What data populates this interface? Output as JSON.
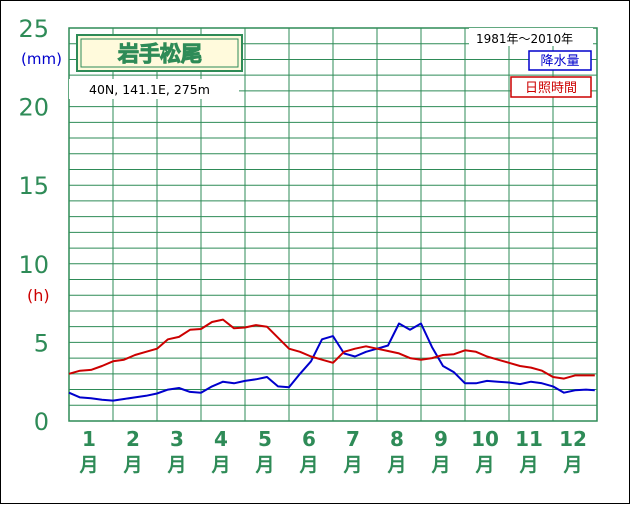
{
  "chart_data": {
    "type": "line",
    "title": "岩手松尾",
    "location": "40N, 141.1E, 275m",
    "period": "1981年〜2010年",
    "y_unit_precip": "(mm)",
    "y_unit_sun": "(h)",
    "ylim": [
      0,
      25
    ],
    "yticks": [
      "0",
      "5",
      "10",
      "15",
      "20",
      "25"
    ],
    "xlim": [
      1,
      13
    ],
    "x_tick_numbers": [
      "1",
      "2",
      "3",
      "4",
      "5",
      "6",
      "7",
      "8",
      "9",
      "10",
      "11",
      "12"
    ],
    "x_tick_unit": "月",
    "grid": true,
    "legend_position": "top-right",
    "colors": {
      "frame": "#2e8b57",
      "axis_text": "#2e8b57",
      "precip": "#0000cc",
      "sun": "#cc0000",
      "title_bg": "#fffadc",
      "title_text": "#2e8b57"
    },
    "series": [
      {
        "name": "降水量",
        "color": "#0000cc",
        "x": [
          1.0,
          1.25,
          1.5,
          1.75,
          2.0,
          2.25,
          2.5,
          2.75,
          3.0,
          3.25,
          3.5,
          3.75,
          4.0,
          4.25,
          4.5,
          4.75,
          5.0,
          5.25,
          5.5,
          5.75,
          6.0,
          6.25,
          6.5,
          6.75,
          7.0,
          7.25,
          7.5,
          7.75,
          8.0,
          8.25,
          8.5,
          8.75,
          9.0,
          9.25,
          9.5,
          9.75,
          10.0,
          10.25,
          10.5,
          10.75,
          11.0,
          11.25,
          11.5,
          11.75,
          12.0,
          12.25,
          12.5,
          12.75,
          12.95
        ],
        "values": [
          1.8,
          1.5,
          1.45,
          1.35,
          1.3,
          1.4,
          1.5,
          1.6,
          1.75,
          2.0,
          2.1,
          1.85,
          1.8,
          2.2,
          2.5,
          2.4,
          2.55,
          2.65,
          2.8,
          2.2,
          2.15,
          3.0,
          3.8,
          5.2,
          5.4,
          4.3,
          4.1,
          4.4,
          4.6,
          4.8,
          6.2,
          5.8,
          6.2,
          4.7,
          3.5,
          3.1,
          2.4,
          2.4,
          2.55,
          2.5,
          2.45,
          2.35,
          2.5,
          2.4,
          2.2,
          1.8,
          1.95,
          2.0,
          1.95
        ]
      },
      {
        "name": "日照時間",
        "color": "#cc0000",
        "x": [
          1.0,
          1.25,
          1.5,
          1.75,
          2.0,
          2.25,
          2.5,
          2.75,
          3.0,
          3.25,
          3.5,
          3.75,
          4.0,
          4.25,
          4.5,
          4.75,
          5.0,
          5.25,
          5.5,
          5.75,
          6.0,
          6.25,
          6.5,
          6.75,
          7.0,
          7.25,
          7.5,
          7.75,
          8.0,
          8.25,
          8.5,
          8.75,
          9.0,
          9.25,
          9.5,
          9.75,
          10.0,
          10.25,
          10.5,
          10.75,
          11.0,
          11.25,
          11.5,
          11.75,
          12.0,
          12.25,
          12.5,
          12.75,
          12.95
        ],
        "values": [
          3.0,
          3.2,
          3.25,
          3.5,
          3.8,
          3.9,
          4.2,
          4.4,
          4.6,
          5.2,
          5.35,
          5.8,
          5.85,
          6.3,
          6.45,
          5.9,
          5.95,
          6.1,
          6.0,
          5.3,
          4.6,
          4.4,
          4.1,
          3.9,
          3.7,
          4.4,
          4.6,
          4.75,
          4.6,
          4.45,
          4.3,
          4.0,
          3.9,
          4.0,
          4.2,
          4.25,
          4.5,
          4.4,
          4.1,
          3.9,
          3.7,
          3.5,
          3.4,
          3.2,
          2.8,
          2.7,
          2.9,
          2.9,
          2.9
        ]
      }
    ]
  }
}
